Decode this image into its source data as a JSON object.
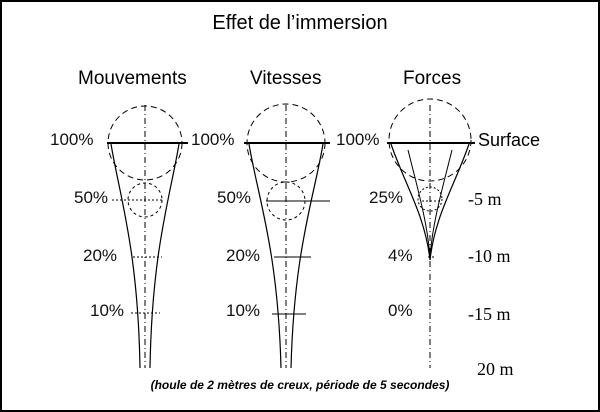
{
  "title": "Effet de l’immersion",
  "columns": [
    {
      "name": "Mouvements",
      "labels": [
        "100%",
        "50%",
        "20%",
        "10%"
      ]
    },
    {
      "name": "Vitesses",
      "labels": [
        "100%",
        "50%",
        "20%",
        "10%"
      ]
    },
    {
      "name": "Forces",
      "labels": [
        "100%",
        "25%",
        "4%",
        "0%"
      ]
    }
  ],
  "surface_label": "Surface",
  "depth_labels": [
    "-5 m",
    "-10 m",
    "-15 m",
    "20 m"
  ],
  "caption": "(houle de 2 mètres de creux, période de 5 secondes)"
}
